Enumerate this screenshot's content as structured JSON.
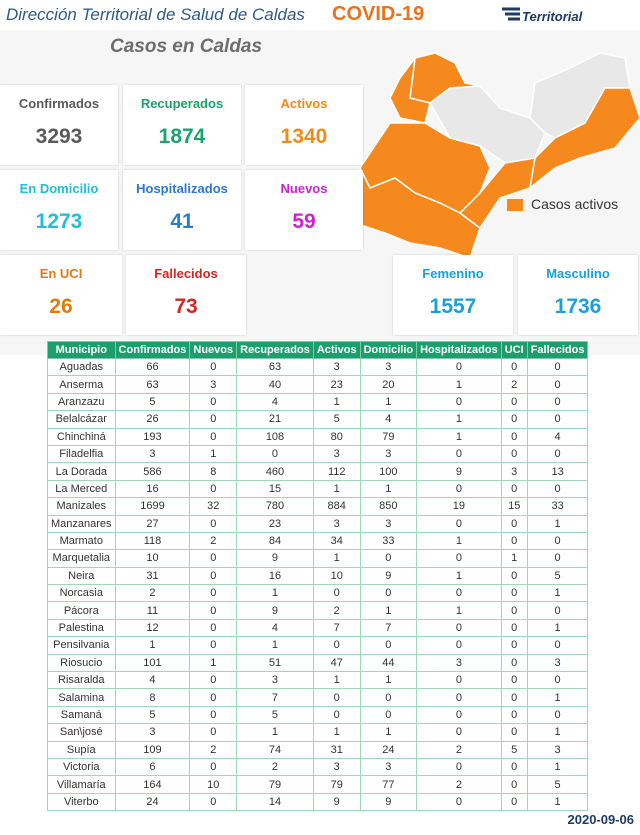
{
  "header": {
    "title": "Dirección Territorial de Salud de Caldas",
    "topic": "COVID-19",
    "logo": "Territorial"
  },
  "subtitle": "Casos en Caldas",
  "cards": [
    {
      "label": "Confirmados",
      "value": 3293,
      "color": "#5a5a5a"
    },
    {
      "label": "Recuperados",
      "value": 1874,
      "color": "#1aa36b"
    },
    {
      "label": "Activos",
      "value": 1340,
      "color": "#f28a1a"
    },
    {
      "label": "En Domicilio",
      "value": 1273,
      "color": "#1fbfd6"
    },
    {
      "label": "Hospitalizados",
      "value": 41,
      "color": "#2b78cf"
    },
    {
      "label": "Nuevos",
      "value": 59,
      "color": "#cf22cf"
    },
    {
      "label": "En UCI",
      "value": 26,
      "color": "#e07b10"
    },
    {
      "label": "Fallecidos",
      "value": 73,
      "color": "#d42525"
    },
    {
      "label": "Femenino",
      "value": 1557,
      "color": "#1c9fd6"
    },
    {
      "label": "Masculino",
      "value": 1736,
      "color": "#1c9fd6"
    }
  ],
  "map": {
    "legend": "Casos activos"
  },
  "table": {
    "columns": [
      "Municipio",
      "Confirmados",
      "Nuevos",
      "Recuperados",
      "Activos",
      "Domicilio",
      "Hospitalizados",
      "UCI",
      "Fallecidos"
    ],
    "rows": [
      [
        "Aguadas",
        66,
        0,
        63,
        3,
        3,
        0,
        0,
        0
      ],
      [
        "Anserma",
        63,
        3,
        40,
        23,
        20,
        1,
        2,
        0
      ],
      [
        "Aranzazu",
        5,
        0,
        4,
        1,
        1,
        0,
        0,
        0
      ],
      [
        "Belalcázar",
        26,
        0,
        21,
        5,
        4,
        1,
        0,
        0
      ],
      [
        "Chinchiná",
        193,
        0,
        108,
        80,
        79,
        1,
        0,
        4
      ],
      [
        "Filadelfia",
        3,
        1,
        0,
        3,
        3,
        0,
        0,
        0
      ],
      [
        "La Dorada",
        586,
        8,
        460,
        112,
        100,
        9,
        3,
        13
      ],
      [
        "La Merced",
        16,
        0,
        15,
        1,
        1,
        0,
        0,
        0
      ],
      [
        "Manizales",
        1699,
        32,
        780,
        884,
        850,
        19,
        15,
        33
      ],
      [
        "Manzanares",
        27,
        0,
        23,
        3,
        3,
        0,
        0,
        1
      ],
      [
        "Marmato",
        118,
        2,
        84,
        34,
        33,
        1,
        0,
        0
      ],
      [
        "Marquetalia",
        10,
        0,
        9,
        1,
        0,
        0,
        1,
        0
      ],
      [
        "Neira",
        31,
        0,
        16,
        10,
        9,
        1,
        0,
        5
      ],
      [
        "Norcasia",
        2,
        0,
        1,
        0,
        0,
        0,
        0,
        1
      ],
      [
        "Pácora",
        11,
        0,
        9,
        2,
        1,
        1,
        0,
        0
      ],
      [
        "Palestina",
        12,
        0,
        4,
        7,
        7,
        0,
        0,
        1
      ],
      [
        "Pensilvania",
        1,
        0,
        1,
        0,
        0,
        0,
        0,
        0
      ],
      [
        "Riosucio",
        101,
        1,
        51,
        47,
        44,
        3,
        0,
        3
      ],
      [
        "Risaralda",
        4,
        0,
        3,
        1,
        1,
        0,
        0,
        0
      ],
      [
        "Salamina",
        8,
        0,
        7,
        0,
        0,
        0,
        0,
        1
      ],
      [
        "Samaná",
        5,
        0,
        5,
        0,
        0,
        0,
        0,
        0
      ],
      [
        "San\\josé",
        3,
        0,
        1,
        1,
        1,
        0,
        0,
        1
      ],
      [
        "Supía",
        109,
        2,
        74,
        31,
        24,
        2,
        5,
        3
      ],
      [
        "Victoria",
        6,
        0,
        2,
        3,
        3,
        0,
        0,
        1
      ],
      [
        "Villamaría",
        164,
        10,
        79,
        79,
        77,
        2,
        0,
        5
      ],
      [
        "Viterbo",
        24,
        0,
        14,
        9,
        9,
        0,
        0,
        1
      ]
    ]
  },
  "date": "2020-09-06"
}
